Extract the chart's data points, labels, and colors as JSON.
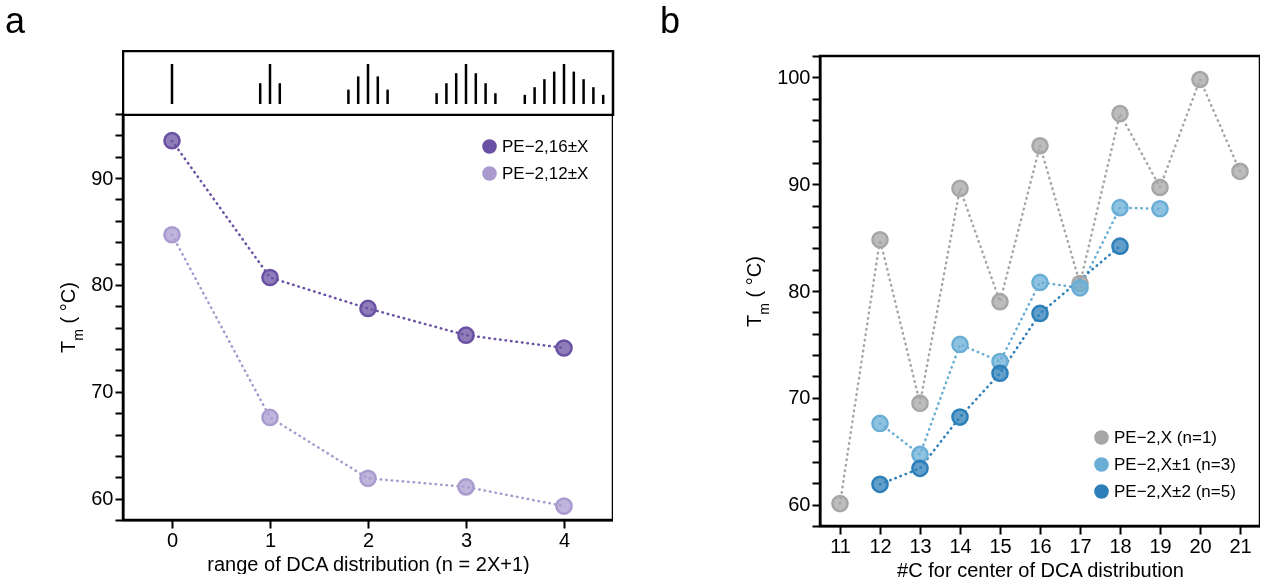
{
  "chart_data": [
    {
      "type": "line",
      "title": "a",
      "xlabel": "range of DCA distribution (n = 2X+1)",
      "ylabel": "T$_{m}$ ( °C)",
      "x": [
        0,
        1,
        2,
        3,
        4
      ],
      "xlim": [
        -0.5,
        4.5
      ],
      "xticks": [
        0,
        1,
        2,
        3,
        4
      ],
      "ylim": [
        58,
        96
      ],
      "yticks": [
        {
          "value": 58,
          "label": null
        },
        60,
        {
          "value": 62,
          "label": null
        },
        {
          "value": 64,
          "label": null
        },
        {
          "value": 66,
          "label": null
        },
        {
          "value": 68,
          "label": null
        },
        70,
        {
          "value": 72,
          "label": null
        },
        {
          "value": 74,
          "label": null
        },
        {
          "value": 76,
          "label": null
        },
        {
          "value": 78,
          "label": null
        },
        80,
        {
          "value": 82,
          "label": null
        },
        {
          "value": 84,
          "label": null
        },
        {
          "value": 86,
          "label": null
        },
        {
          "value": 88,
          "label": null
        },
        90,
        {
          "value": 92,
          "label": null
        },
        {
          "value": 94,
          "label": null
        },
        {
          "value": 96,
          "label": null
        }
      ],
      "marker": "circle",
      "line_style": "dotted",
      "legend": "top right",
      "grid": false,
      "series": [
        {
          "name": "PE−2,16±X",
          "color": "#6a51a3",
          "values": [
            93.5,
            80.7,
            77.8,
            75.3,
            74.1
          ]
        },
        {
          "name": "PE−2,12±X",
          "color": "#a99bcf",
          "values": [
            84.7,
            67.6,
            61.9,
            61.1,
            59.3
          ]
        }
      ]
    },
    {
      "type": "line",
      "title": "b",
      "xlabel": "#C for center of DCA distribution",
      "ylabel": "T$_{m}$ ( °C)",
      "xlim": [
        10.5,
        21.5
      ],
      "xticks": [
        11,
        12,
        13,
        14,
        15,
        16,
        17,
        18,
        19,
        20,
        21
      ],
      "ylim": [
        58,
        102
      ],
      "yticks": [
        {
          "value": 58,
          "label": null
        },
        60,
        {
          "value": 62,
          "label": null
        },
        {
          "value": 64,
          "label": null
        },
        {
          "value": 66,
          "label": null
        },
        {
          "value": 68,
          "label": null
        },
        70,
        {
          "value": 72,
          "label": null
        },
        {
          "value": 74,
          "label": null
        },
        {
          "value": 76,
          "label": null
        },
        {
          "value": 78,
          "label": null
        },
        80,
        {
          "value": 82,
          "label": null
        },
        {
          "value": 84,
          "label": null
        },
        {
          "value": 86,
          "label": null
        },
        {
          "value": 88,
          "label": null
        },
        90,
        {
          "value": 92,
          "label": null
        },
        {
          "value": 94,
          "label": null
        },
        {
          "value": 96,
          "label": null
        },
        {
          "value": 98,
          "label": null
        },
        100,
        {
          "value": 102,
          "label": null
        }
      ],
      "marker": "circle",
      "line_style": "dotted",
      "legend": "bottom right",
      "grid": false,
      "series": [
        {
          "name": "PE−2,X (n=1)",
          "color": "#a6a6a6",
          "x": [
            11,
            12,
            13,
            14,
            15,
            16,
            17,
            18,
            19,
            20,
            21
          ],
          "values": [
            60.1,
            84.8,
            69.5,
            89.6,
            79.0,
            93.6,
            80.7,
            96.6,
            89.7,
            99.8,
            91.2
          ]
        },
        {
          "name": "PE−2,X±1 (n=3)",
          "color": "#6aaed6",
          "x": [
            12,
            13,
            14,
            15,
            16,
            17,
            18,
            19
          ],
          "values": [
            67.6,
            64.7,
            75.0,
            73.4,
            80.8,
            80.3,
            87.8,
            87.7
          ]
        },
        {
          "name": "PE−2,X±2 (n=5)",
          "color": "#2c7fb8",
          "x": [
            12,
            13,
            14,
            15,
            16,
            18
          ],
          "values": [
            61.9,
            63.4,
            68.2,
            72.3,
            77.9,
            84.2
          ]
        }
      ]
    }
  ]
}
